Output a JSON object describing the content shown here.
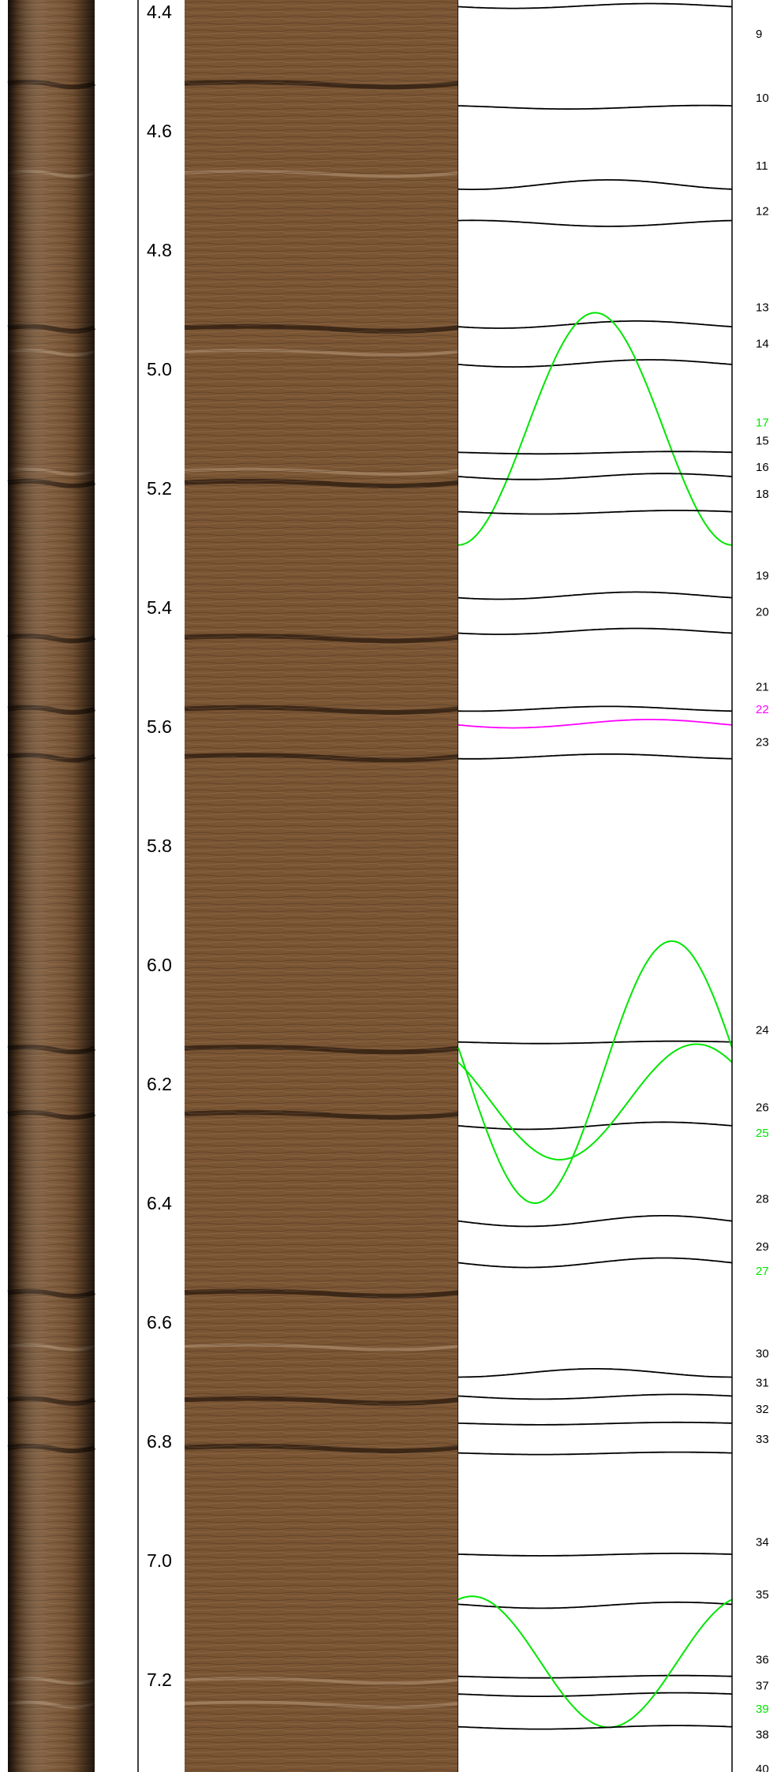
{
  "depth_track": {
    "unit": "m",
    "start_depth": 4.38,
    "end_depth": 7.355,
    "labels": [
      "4.4",
      "4.6",
      "4.8",
      "5.0",
      "5.2",
      "5.4",
      "5.6",
      "5.8",
      "6.0",
      "6.2",
      "6.4",
      "6.6",
      "6.8",
      "7.0",
      "7.2"
    ],
    "label_depths": [
      4.4,
      4.6,
      4.8,
      5.0,
      5.2,
      5.4,
      5.6,
      5.8,
      6.0,
      6.2,
      6.4,
      6.6,
      6.8,
      7.0,
      7.2
    ]
  },
  "colors": {
    "bedding": "#000000",
    "fracture": "#00e600",
    "highlight": "#ff00ff",
    "core_base": "#7a5534",
    "core_dark": "#2a1a0e",
    "core_light": "#a68566"
  },
  "core_bands": [
    {
      "depth": 4.52,
      "tone": "dark"
    },
    {
      "depth": 4.67,
      "tone": "light"
    },
    {
      "depth": 4.93,
      "tone": "dark"
    },
    {
      "depth": 4.97,
      "tone": "light"
    },
    {
      "depth": 5.17,
      "tone": "light"
    },
    {
      "depth": 5.19,
      "tone": "dark"
    },
    {
      "depth": 5.45,
      "tone": "dark"
    },
    {
      "depth": 5.57,
      "tone": "dark"
    },
    {
      "depth": 5.65,
      "tone": "dark"
    },
    {
      "depth": 6.14,
      "tone": "dark"
    },
    {
      "depth": 6.25,
      "tone": "dark"
    },
    {
      "depth": 6.55,
      "tone": "dark"
    },
    {
      "depth": 6.64,
      "tone": "light"
    },
    {
      "depth": 6.73,
      "tone": "dark"
    },
    {
      "depth": 6.81,
      "tone": "dark"
    },
    {
      "depth": 7.2,
      "tone": "light"
    },
    {
      "depth": 7.24,
      "tone": "light"
    }
  ],
  "features": [
    {
      "id": "9",
      "type": "bedding",
      "depth": 4.39,
      "amplitude": 0.004,
      "phase": 0.2,
      "label_depth": 4.437
    },
    {
      "id": "10",
      "type": "bedding",
      "depth": 4.56,
      "amplitude": 0.003,
      "phase": 0.4,
      "label_depth": 4.544
    },
    {
      "id": "11",
      "type": "bedding",
      "depth": 4.69,
      "amplitude": 0.008,
      "phase": 0.05,
      "label_depth": 4.658
    },
    {
      "id": "12",
      "type": "bedding",
      "depth": 4.755,
      "amplitude": 0.005,
      "phase": 0.55,
      "label_depth": 4.734
    },
    {
      "id": "13",
      "type": "bedding",
      "depth": 4.925,
      "amplitude": 0.006,
      "phase": 0.15,
      "label_depth": 4.896
    },
    {
      "id": "14",
      "type": "bedding",
      "depth": 4.99,
      "amplitude": 0.006,
      "phase": 0.2,
      "label_depth": 4.957
    },
    {
      "id": "17",
      "type": "fracture",
      "depth": 5.1,
      "amplitude": 0.195,
      "phase": 0.0,
      "label_depth": 5.089
    },
    {
      "id": "15",
      "type": "bedding",
      "depth": 5.14,
      "amplitude": 0.002,
      "phase": 0.3,
      "label_depth": 5.12
    },
    {
      "id": "16",
      "type": "bedding",
      "depth": 5.18,
      "amplitude": 0.005,
      "phase": 0.25,
      "label_depth": 5.164
    },
    {
      "id": "18",
      "type": "bedding",
      "depth": 5.24,
      "amplitude": 0.003,
      "phase": 0.3,
      "label_depth": 5.209
    },
    {
      "id": "19",
      "type": "bedding",
      "depth": 5.38,
      "amplitude": 0.006,
      "phase": 0.15,
      "label_depth": 5.346
    },
    {
      "id": "20",
      "type": "bedding",
      "depth": 5.44,
      "amplitude": 0.005,
      "phase": 0.15,
      "label_depth": 5.407
    },
    {
      "id": "21",
      "type": "bedding",
      "depth": 5.57,
      "amplitude": 0.004,
      "phase": 0.05,
      "label_depth": 5.533
    },
    {
      "id": "22",
      "type": "highlight",
      "depth": 5.595,
      "amplitude": 0.007,
      "phase": 0.2,
      "label_depth": 5.571
    },
    {
      "id": "23",
      "type": "bedding",
      "depth": 5.65,
      "amplitude": 0.004,
      "phase": 0.05,
      "label_depth": 5.626
    },
    {
      "id": "24",
      "type": "bedding",
      "depth": 6.13,
      "amplitude": 0.002,
      "phase": 0.3,
      "label_depth": 6.109
    },
    {
      "id": "26",
      "type": "bedding",
      "depth": 6.27,
      "amplitude": 0.006,
      "phase": 0.25,
      "label_depth": 6.239
    },
    {
      "id": "25",
      "type": "fracture",
      "depth": 6.23,
      "amplitude": 0.097,
      "phase": 0.37,
      "label_depth": 6.282
    },
    {
      "id": "28",
      "type": "bedding",
      "depth": 6.43,
      "amplitude": 0.009,
      "phase": 0.25,
      "label_depth": 6.393
    },
    {
      "id": "29",
      "type": "bedding",
      "depth": 6.5,
      "amplitude": 0.008,
      "phase": 0.25,
      "label_depth": 6.473
    },
    {
      "id": "27",
      "type": "fracture",
      "depth": 6.18,
      "amplitude": 0.22,
      "phase": 0.28,
      "label_depth": 6.514
    },
    {
      "id": "30",
      "type": "bedding",
      "depth": 6.685,
      "amplitude": 0.007,
      "phase": 0.0,
      "label_depth": 6.652
    },
    {
      "id": "31",
      "type": "bedding",
      "depth": 6.725,
      "amplitude": 0.004,
      "phase": 0.3,
      "label_depth": 6.701
    },
    {
      "id": "32",
      "type": "bedding",
      "depth": 6.77,
      "amplitude": 0.002,
      "phase": 0.3,
      "label_depth": 6.746
    },
    {
      "id": "33",
      "type": "bedding",
      "depth": 6.82,
      "amplitude": 0.002,
      "phase": 0.3,
      "label_depth": 6.796
    },
    {
      "id": "34",
      "type": "bedding",
      "depth": 6.99,
      "amplitude": 0.002,
      "phase": 0.3,
      "label_depth": 6.969
    },
    {
      "id": "35",
      "type": "bedding",
      "depth": 7.075,
      "amplitude": 0.005,
      "phase": 0.3,
      "label_depth": 7.057
    },
    {
      "id": "36",
      "type": "bedding",
      "depth": 7.195,
      "amplitude": 0.002,
      "phase": 0.3,
      "label_depth": 7.166
    },
    {
      "id": "37",
      "type": "bedding",
      "depth": 7.225,
      "amplitude": 0.003,
      "phase": 0.3,
      "label_depth": 7.21
    },
    {
      "id": "39",
      "type": "fracture",
      "depth": 7.17,
      "amplitude": 0.11,
      "phase": 0.55,
      "label_depth": 7.249
    },
    {
      "id": "38",
      "type": "bedding",
      "depth": 7.28,
      "amplitude": 0.003,
      "phase": 0.3,
      "label_depth": 7.292
    },
    {
      "id": "40",
      "type": "bedding",
      "depth": 7.37,
      "amplitude": 0.003,
      "phase": 0.3,
      "label_depth": 7.35
    }
  ]
}
